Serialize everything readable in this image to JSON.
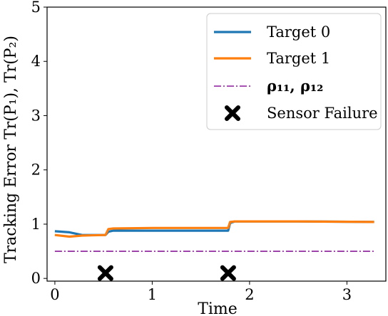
{
  "chart_data": {
    "type": "line",
    "xlabel": "Time",
    "ylabel": "Tracking Error Tr(P₁),  Tr(P₂)",
    "xlim": [
      -0.08,
      3.4
    ],
    "ylim": [
      -0.05,
      5.0
    ],
    "xticks": [
      0,
      1,
      2,
      3
    ],
    "yticks": [
      0,
      1,
      2,
      3,
      4,
      5
    ],
    "grid": false,
    "legend_position": "top-right",
    "series": [
      {
        "name": "Target 0",
        "color": "#1f77b4",
        "style": "solid",
        "x": [
          0,
          0.15,
          0.28,
          0.52,
          0.55,
          0.6,
          1.0,
          1.5,
          1.78,
          1.8,
          1.85,
          2.5,
          3.28
        ],
        "y": [
          0.87,
          0.85,
          0.8,
          0.8,
          0.86,
          0.88,
          0.88,
          0.88,
          0.88,
          1.02,
          1.05,
          1.05,
          1.04
        ]
      },
      {
        "name": "Target 1",
        "color": "#ff7f0e",
        "style": "solid",
        "x": [
          0,
          0.15,
          0.28,
          0.52,
          0.55,
          0.6,
          1.0,
          1.5,
          1.78,
          1.8,
          1.85,
          2.5,
          3.28
        ],
        "y": [
          0.8,
          0.77,
          0.79,
          0.8,
          0.91,
          0.92,
          0.93,
          0.93,
          0.93,
          1.04,
          1.05,
          1.05,
          1.04
        ]
      },
      {
        "name": "ρ₁₁,  ρ₁₂",
        "color": "#8b1a9b",
        "style": "dashdot",
        "x": [
          0,
          3.28
        ],
        "y": [
          0.5,
          0.5
        ]
      }
    ],
    "markers": {
      "name": "Sensor Failure",
      "symbol": "X",
      "color": "#000000",
      "x": [
        0.52,
        1.78
      ],
      "y": [
        0.1,
        0.1
      ]
    }
  }
}
